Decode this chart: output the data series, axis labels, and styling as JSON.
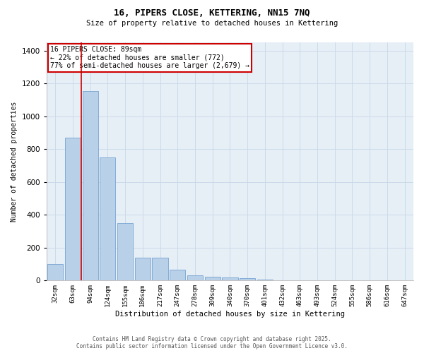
{
  "title": "16, PIPERS CLOSE, KETTERING, NN15 7NQ",
  "subtitle": "Size of property relative to detached houses in Kettering",
  "xlabel": "Distribution of detached houses by size in Kettering",
  "ylabel": "Number of detached properties",
  "categories": [
    "32sqm",
    "63sqm",
    "94sqm",
    "124sqm",
    "155sqm",
    "186sqm",
    "217sqm",
    "247sqm",
    "278sqm",
    "309sqm",
    "340sqm",
    "370sqm",
    "401sqm",
    "432sqm",
    "463sqm",
    "493sqm",
    "524sqm",
    "555sqm",
    "586sqm",
    "616sqm",
    "647sqm"
  ],
  "values": [
    100,
    870,
    1155,
    750,
    350,
    140,
    140,
    65,
    30,
    25,
    20,
    15,
    7,
    0,
    0,
    0,
    0,
    0,
    0,
    0,
    0
  ],
  "bar_color": "#b8d0e8",
  "bar_edge_color": "#6699cc",
  "grid_color": "#c8d8e8",
  "bg_color": "#e6eef6",
  "red_line_x": 1.5,
  "annotation_text": "16 PIPERS CLOSE: 89sqm\n← 22% of detached houses are smaller (772)\n77% of semi-detached houses are larger (2,679) →",
  "annotation_box_color": "#cc0000",
  "ylim": [
    0,
    1450
  ],
  "yticks": [
    0,
    200,
    400,
    600,
    800,
    1000,
    1200,
    1400
  ],
  "footer_line1": "Contains HM Land Registry data © Crown copyright and database right 2025.",
  "footer_line2": "Contains public sector information licensed under the Open Government Licence v3.0."
}
